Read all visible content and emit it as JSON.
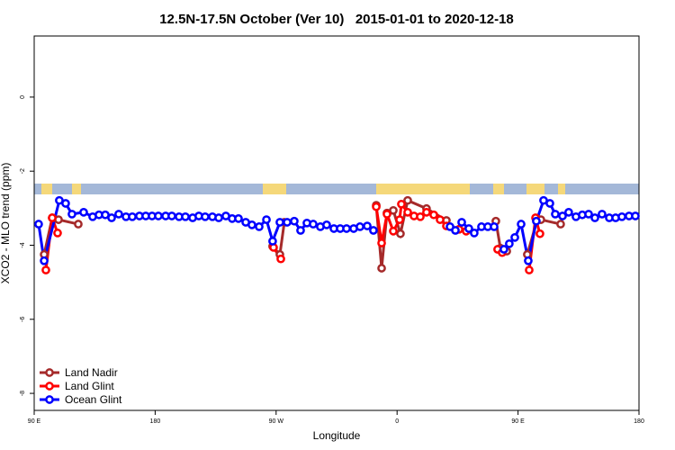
{
  "chart_data": {
    "type": "line",
    "title": "12.5N-17.5N October (Ver 10)   2015-01-01 to 2020-12-18",
    "x_label": "Longitude",
    "y_label": "XCO2 - MLO trend (ppm)",
    "xlim": [
      90,
      540
    ],
    "xticks": [
      {
        "value": 90,
        "label": "90 E"
      },
      180,
      {
        "value": 270,
        "label": "90 W"
      },
      {
        "value": 360,
        "label": "0"
      },
      {
        "value": 450,
        "label": "90 E"
      },
      {
        "value": 540,
        "label": "180"
      }
    ],
    "ylim": [
      -8.46,
      1.65
    ],
    "yticks": [
      -8,
      -6,
      -4,
      -2,
      0
    ],
    "legend": "bottom-left",
    "series": [
      {
        "name": "Land Nadir",
        "color": "#a52a2a",
        "x": [
          97.4,
          103.4,
          108.1,
          122.8,
          null,
          267.4,
          272.8,
          276.1,
          null,
          344.5,
          348.5,
          352.5,
          357.2,
          362.5,
          367.9,
          381.9,
          396.7,
          null,
          433.5,
          436.9,
          441.6,
          null,
          456.9,
          464.3,
          467.0,
          481.7
        ],
        "values": [
          -4.25,
          -3.26,
          -3.31,
          -3.43,
          null,
          -4.03,
          -4.25,
          -3.38,
          null,
          -2.92,
          -4.62,
          -3.13,
          -3.06,
          -3.69,
          -2.79,
          -3.01,
          -3.33,
          null,
          -3.35,
          -4.08,
          -4.16,
          null,
          -4.25,
          -3.31,
          -3.31,
          -3.43
        ]
      },
      {
        "name": "Land Glint",
        "color": "#ff0000",
        "x": [
          98.7,
          103.4,
          107.4,
          null,
          268.1,
          273.5,
          null,
          344.5,
          348.5,
          352.5,
          357.2,
          361.9,
          363.2,
          367.9,
          372.6,
          377.3,
          381.9,
          387.3,
          392.0,
          396.7,
          406.1,
          411.4,
          null,
          434.8,
          438.2,
          null,
          458.3,
          463.0,
          466.3
        ],
        "values": [
          -4.67,
          -3.26,
          -3.67,
          null,
          -4.06,
          -4.37,
          null,
          -2.96,
          -3.94,
          -3.16,
          -3.62,
          -3.31,
          -2.89,
          -3.11,
          -3.21,
          -3.23,
          -3.11,
          -3.18,
          -3.31,
          -3.48,
          -3.57,
          -3.62,
          null,
          -4.11,
          -4.2,
          null,
          -4.67,
          -3.26,
          -3.69
        ]
      },
      {
        "name": "Ocean Glint",
        "color": "#0000ff",
        "x": [
          93.3,
          97.4,
          108.7,
          113.4,
          118.1,
          126.8,
          133.5,
          138.2,
          142.9,
          147.6,
          152.9,
          158.3,
          163.0,
          168.3,
          173.0,
          177.7,
          182.4,
          187.8,
          192.4,
          197.8,
          202.5,
          207.9,
          212.5,
          217.2,
          222.6,
          227.3,
          232.6,
          237.3,
          242.0,
          247.4,
          252.0,
          257.4,
          262.8,
          267.4,
          272.8,
          278.2,
          283.5,
          288.2,
          292.9,
          297.6,
          302.9,
          307.6,
          313.0,
          317.7,
          322.4,
          327.7,
          332.4,
          337.8,
          342.4,
          null,
          399.4,
          403.4,
          408.1,
          413.4,
          417.4,
          422.8,
          427.5,
          432.2,
          null,
          439.5,
          443.5,
          447.6,
          452.3,
          457.6,
          463.6,
          469.0,
          473.7,
          477.7,
          483.1,
          487.7,
          493.1,
          497.8,
          502.5,
          507.2,
          512.5,
          517.9,
          522.6,
          527.3,
          532.6,
          537.3
        ],
        "values": [
          -3.43,
          -4.42,
          -2.79,
          -2.87,
          -3.16,
          -3.11,
          -3.23,
          -3.18,
          -3.18,
          -3.26,
          -3.16,
          -3.23,
          -3.23,
          -3.21,
          -3.21,
          -3.21,
          -3.21,
          -3.21,
          -3.21,
          -3.23,
          -3.23,
          -3.26,
          -3.21,
          -3.23,
          -3.23,
          -3.26,
          -3.21,
          -3.28,
          -3.28,
          -3.38,
          -3.45,
          -3.5,
          -3.31,
          -3.89,
          -3.38,
          -3.38,
          -3.35,
          -3.6,
          -3.4,
          -3.43,
          -3.5,
          -3.45,
          -3.55,
          -3.55,
          -3.55,
          -3.55,
          -3.5,
          -3.48,
          -3.6,
          null,
          -3.5,
          -3.6,
          -3.38,
          -3.55,
          -3.67,
          -3.5,
          -3.5,
          -3.5,
          null,
          -4.11,
          -3.96,
          -3.79,
          -3.43,
          -4.42,
          -3.35,
          -2.79,
          -2.87,
          -3.16,
          -3.21,
          -3.11,
          -3.23,
          -3.18,
          -3.16,
          -3.26,
          -3.16,
          -3.26,
          -3.26,
          -3.23,
          -3.21,
          -3.21
        ]
      }
    ]
  }
}
